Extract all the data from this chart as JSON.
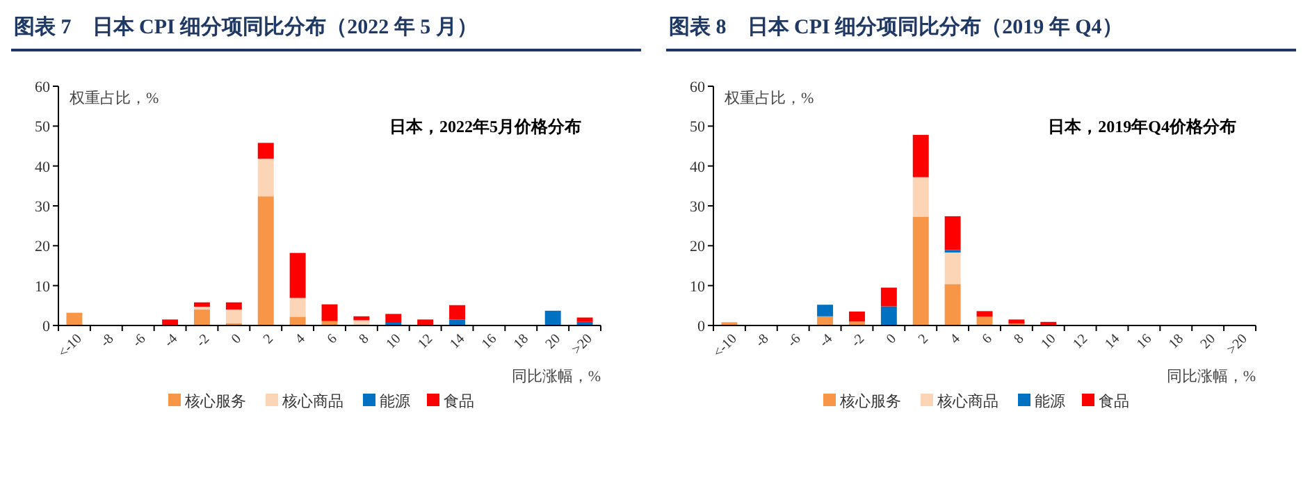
{
  "chart_data": [
    {
      "type": "bar",
      "stacked": true,
      "title": "图表 7　日本 CPI 细分项同比分布（2022 年 5 月）",
      "ylabel": "权重占比，%",
      "xlabel": "同比涨幅，%",
      "annotations": [
        "日本，2022年5月价格分布"
      ],
      "categories": [
        "<-10",
        "-8",
        "-6",
        "-4",
        "-2",
        "0",
        "2",
        "4",
        "6",
        "8",
        "10",
        "12",
        "14",
        "16",
        "18",
        "20",
        ">20"
      ],
      "series": [
        {
          "name": "核心服务",
          "color": "#f79646",
          "values": [
            3.2,
            null,
            null,
            null,
            4.0,
            0.6,
            32.4,
            2.2,
            1.1,
            null,
            null,
            null,
            null,
            null,
            null,
            null,
            null
          ]
        },
        {
          "name": "核心商品",
          "color": "#fbd5b5",
          "values": [
            null,
            null,
            null,
            null,
            0.7,
            3.4,
            9.4,
            4.7,
            null,
            1.3,
            null,
            null,
            null,
            null,
            null,
            null,
            null
          ]
        },
        {
          "name": "能源",
          "color": "#0070c0",
          "values": [
            null,
            null,
            null,
            null,
            null,
            null,
            null,
            null,
            null,
            null,
            0.7,
            null,
            1.5,
            null,
            null,
            3.7,
            0.9
          ]
        },
        {
          "name": "食品",
          "color": "#ff0000",
          "values": [
            null,
            null,
            null,
            1.5,
            1.1,
            1.8,
            4.0,
            11.3,
            4.2,
            1.0,
            2.2,
            1.5,
            3.6,
            null,
            null,
            null,
            1.1
          ]
        }
      ],
      "ylim": [
        0,
        60
      ],
      "yticks": [
        0,
        10,
        20,
        30,
        40,
        50,
        60
      ],
      "legend": "bottom"
    },
    {
      "type": "bar",
      "stacked": true,
      "title": "图表 8　日本 CPI 细分项同比分布（2019 年 Q4）",
      "ylabel": "权重占比，%",
      "xlabel": "同比涨幅，%",
      "annotations": [
        "日本，2019年Q4价格分布"
      ],
      "categories": [
        "<-10",
        "-8",
        "-6",
        "-4",
        "-2",
        "0",
        "2",
        "4",
        "6",
        "8",
        "10",
        "12",
        "14",
        "16",
        "18",
        "20",
        ">20"
      ],
      "series": [
        {
          "name": "核心服务",
          "color": "#f79646",
          "values": [
            0.8,
            null,
            null,
            2.3,
            1.0,
            null,
            27.3,
            10.4,
            2.2,
            0.5,
            null,
            null,
            null,
            null,
            null,
            null,
            null
          ]
        },
        {
          "name": "核心商品",
          "color": "#fbd5b5",
          "values": [
            null,
            null,
            null,
            null,
            null,
            null,
            9.9,
            7.9,
            null,
            null,
            null,
            null,
            null,
            null,
            null,
            null,
            null
          ]
        },
        {
          "name": "能源",
          "color": "#0070c0",
          "values": [
            null,
            null,
            null,
            2.9,
            null,
            4.8,
            null,
            0.6,
            null,
            null,
            null,
            null,
            null,
            null,
            null,
            null,
            null
          ]
        },
        {
          "name": "食品",
          "color": "#ff0000",
          "values": [
            null,
            null,
            null,
            null,
            2.5,
            4.7,
            10.6,
            8.5,
            1.4,
            1.0,
            0.9,
            null,
            null,
            null,
            null,
            null,
            null
          ]
        }
      ],
      "ylim": [
        0,
        60
      ],
      "yticks": [
        0,
        10,
        20,
        30,
        40,
        50,
        60
      ],
      "legend": "bottom"
    }
  ]
}
